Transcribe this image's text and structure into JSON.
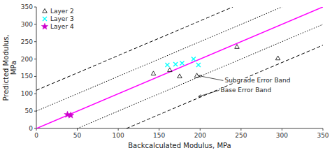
{
  "chart_data": {
    "type": "scatter",
    "xlabel": "Backcalculated Modulus, MPa",
    "ylabel": "Predicted Modulus,\nMPa",
    "xlim": [
      0,
      350
    ],
    "ylim": [
      0,
      350
    ],
    "xticks": [
      0,
      50,
      100,
      150,
      200,
      250,
      300,
      350
    ],
    "yticks": [
      0,
      50,
      100,
      150,
      200,
      250,
      300,
      350
    ],
    "grid": false,
    "legend": "upper-left",
    "series": [
      {
        "type": "line",
        "color": "#ff00ff",
        "line_style": "solid",
        "x": [
          0,
          350
        ],
        "values": [
          0,
          350
        ]
      },
      {
        "type": "line",
        "color": "black",
        "line_style": "dotted",
        "x": [
          0,
          300
        ],
        "values": [
          50,
          350
        ]
      },
      {
        "type": "line",
        "color": "black",
        "line_style": "dotted",
        "x": [
          50,
          350
        ],
        "values": [
          0,
          300
        ]
      },
      {
        "type": "line",
        "color": "black",
        "line_style": "dashed",
        "x": [
          0,
          240
        ],
        "values": [
          110,
          350
        ]
      },
      {
        "type": "line",
        "color": "black",
        "line_style": "dashed",
        "x": [
          110,
          350
        ],
        "values": [
          0,
          240
        ]
      },
      {
        "type": "scatter",
        "name": "Layer 2",
        "color": "black",
        "marker": "triangle-open",
        "x": [
          143,
          163,
          175,
          196,
          245,
          295
        ],
        "values": [
          158,
          168,
          150,
          152,
          235,
          202
        ]
      },
      {
        "type": "scatter",
        "name": "Layer 3",
        "color": "cyan",
        "marker": "x",
        "x": [
          160,
          170,
          178,
          192,
          198
        ],
        "values": [
          183,
          185,
          188,
          200,
          183
        ]
      },
      {
        "type": "scatter",
        "name": "Layer 4",
        "color": "#cc00cc",
        "marker": "star",
        "x": [
          38,
          42
        ],
        "values": [
          40,
          38
        ]
      }
    ],
    "annotations": [
      {
        "text": "Subgrade Error Band",
        "x": 198,
        "y": 152,
        "text_x": 230,
        "text_y": 138
      },
      {
        "text": "Base Error Band",
        "x": 198,
        "y": 92,
        "text_x": 225,
        "text_y": 110
      }
    ]
  }
}
